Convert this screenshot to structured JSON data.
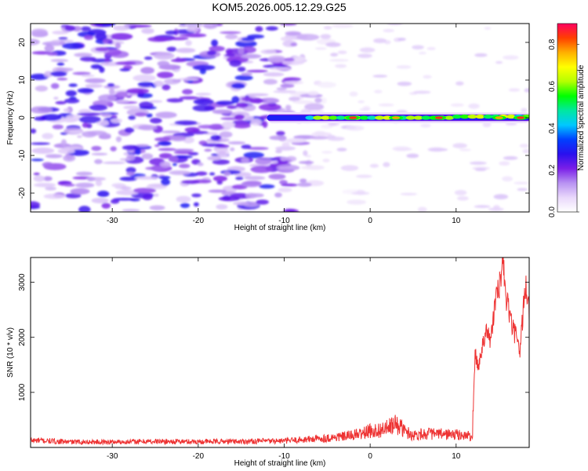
{
  "figure": {
    "title": "KOM5.2026.005.12.29.G25"
  },
  "chart_data": [
    {
      "type": "heatmap",
      "title": "KOM5.2026.005.12.29.G25",
      "xlabel": "Height of straight line (km)",
      "ylabel": "Frequency (Hz)",
      "xlim": [
        -39.5,
        18.5
      ],
      "ylim": [
        -25,
        25
      ],
      "xticks": [
        -30,
        -20,
        -10,
        0,
        10
      ],
      "yticks": [
        -20,
        -10,
        0,
        10,
        20
      ],
      "colorbar": {
        "label": "Normalized spectral amplitude",
        "range": [
          0.0,
          0.9
        ],
        "ticks": [
          0.0,
          0.2,
          0.4,
          0.6,
          0.8
        ],
        "colors": [
          "#ffffff",
          "#e9d8fb",
          "#b892f2",
          "#7a1fe8",
          "#2a10ee",
          "#0040ff",
          "#00c8ff",
          "#00e8a0",
          "#00ff00",
          "#b4ff00",
          "#ffff00",
          "#ffb000",
          "#ff4000",
          "#ff0060"
        ]
      },
      "features": {
        "ridge_start_km": -12,
        "ridge_frequency_hz": 0,
        "noise_region_km": [
          -39.5,
          -5
        ],
        "noise_peak_amplitude": 0.3,
        "ridge_peak_amplitude": 0.85,
        "ridge_peak_locations_km": [
          -2,
          3,
          8,
          15,
          17.5
        ]
      }
    },
    {
      "type": "line",
      "xlabel": "Height of straight line (km)",
      "ylabel": "SNR (10 * v/v)",
      "xlim": [
        -39.5,
        18.5
      ],
      "ylim": [
        0,
        3450
      ],
      "xticks": [
        -30,
        -20,
        -10,
        0,
        10
      ],
      "yticks": [
        1000,
        2000,
        3000
      ],
      "color": "#ee3333",
      "x": [
        -39.5,
        -35,
        -30,
        -25,
        -20,
        -15,
        -10,
        -5,
        -3,
        -1,
        0,
        1,
        2,
        3,
        3.5,
        4,
        5,
        6,
        7,
        8,
        9,
        10,
        11,
        11.9,
        12.2,
        12.6,
        13,
        13.5,
        14,
        14.5,
        15,
        15.5,
        15.8,
        16.2,
        16.6,
        17,
        17.4,
        17.8,
        18.1,
        18.5
      ],
      "y": [
        130,
        100,
        100,
        110,
        105,
        110,
        120,
        170,
        200,
        250,
        300,
        310,
        350,
        420,
        380,
        300,
        220,
        250,
        250,
        240,
        240,
        230,
        220,
        200,
        1700,
        1450,
        1800,
        2200,
        1900,
        2600,
        2900,
        3400,
        2700,
        2450,
        2150,
        2000,
        1700,
        2500,
        2950,
        2450
      ]
    }
  ]
}
